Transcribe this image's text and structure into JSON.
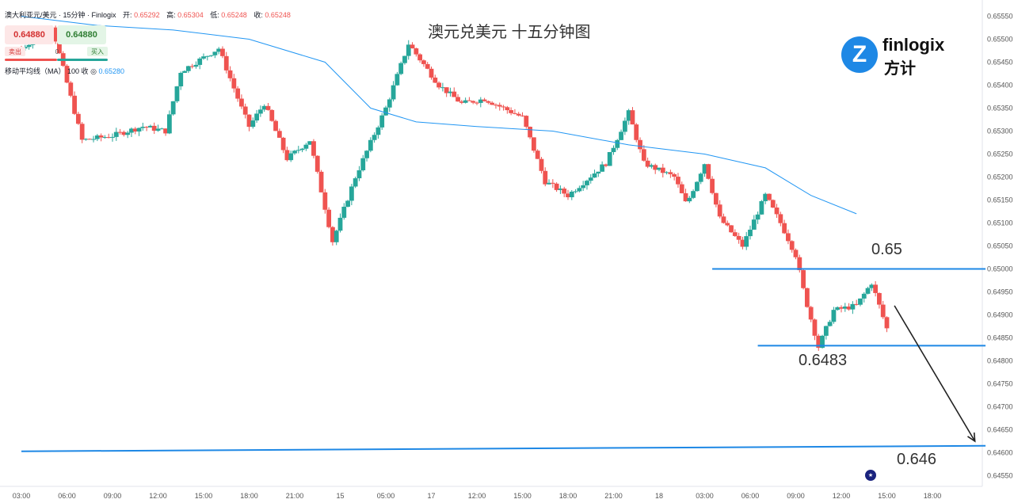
{
  "header": {
    "symbol": "澳大利亚元/美元 · 15分钟 · Finlogix",
    "open_label": "开:",
    "open": "0.65292",
    "high_label": "高:",
    "high": "0.65304",
    "low_label": "低:",
    "low": "0.65248",
    "close_label": "收:",
    "close": "0.65248"
  },
  "trade_panel": {
    "sell_price": "0.64880",
    "buy_price": "0.64880",
    "sell_label": "卖出",
    "buy_label": "买入",
    "spread": "0"
  },
  "indicator": {
    "name": "移动平均线（MA）",
    "params": "100 收",
    "value": "0.65280"
  },
  "title": "澳元兑美元 十五分钟图",
  "logo": {
    "brand": "finlogix",
    "cn": "方计",
    "mark": "Z"
  },
  "annotations": {
    "level_1": "0.65",
    "level_2": "0.6483",
    "level_3": "0.646"
  },
  "colors": {
    "up": "#26a69a",
    "down": "#ef5350",
    "ma": "#2196f3",
    "level": "#1e88e5",
    "arrow": "#222222"
  },
  "chart_data": {
    "type": "candlestick",
    "timeframe": "15分钟",
    "y_ticks": [
      "0.65550",
      "0.65500",
      "0.65450",
      "0.65400",
      "0.65350",
      "0.65300",
      "0.65250",
      "0.65200",
      "0.65150",
      "0.65100",
      "0.65050",
      "0.65000",
      "0.64950",
      "0.64900",
      "0.64850",
      "0.64800",
      "0.64750",
      "0.64700",
      "0.64650",
      "0.64600",
      "0.64550"
    ],
    "ylim": [
      0.6453,
      0.6557
    ],
    "x_ticks": [
      "03:00",
      "06:00",
      "09:00",
      "12:00",
      "15:00",
      "18:00",
      "21:00",
      "15",
      "05:00",
      "17",
      "12:00",
      "15:00",
      "18:00",
      "21:00",
      "18",
      "03:00",
      "06:00",
      "09:00",
      "12:00",
      "15:00",
      "18:00"
    ],
    "close_path": [
      {
        "t": 0,
        "p": 0.6548
      },
      {
        "t": 2,
        "p": 0.6553
      },
      {
        "t": 4,
        "p": 0.6528
      },
      {
        "t": 6,
        "p": 0.6529
      },
      {
        "t": 8,
        "p": 0.6531
      },
      {
        "t": 9.5,
        "p": 0.653
      },
      {
        "t": 10.5,
        "p": 0.6543
      },
      {
        "t": 13,
        "p": 0.6548
      },
      {
        "t": 14.5,
        "p": 0.6535
      },
      {
        "t": 15,
        "p": 0.6531
      },
      {
        "t": 16,
        "p": 0.6536
      },
      {
        "t": 17.5,
        "p": 0.6524
      },
      {
        "t": 19,
        "p": 0.6528
      },
      {
        "t": 20.5,
        "p": 0.6506
      },
      {
        "t": 22,
        "p": 0.652
      },
      {
        "t": 24,
        "p": 0.6535
      },
      {
        "t": 25.5,
        "p": 0.6549
      },
      {
        "t": 27.5,
        "p": 0.654
      },
      {
        "t": 29,
        "p": 0.6536
      },
      {
        "t": 30.5,
        "p": 0.6537
      },
      {
        "t": 33,
        "p": 0.6533
      },
      {
        "t": 34.5,
        "p": 0.6519
      },
      {
        "t": 36,
        "p": 0.6516
      },
      {
        "t": 38.5,
        "p": 0.6523
      },
      {
        "t": 40,
        "p": 0.6534
      },
      {
        "t": 41,
        "p": 0.6523
      },
      {
        "t": 43,
        "p": 0.652
      },
      {
        "t": 43.8,
        "p": 0.6514
      },
      {
        "t": 45,
        "p": 0.6523
      },
      {
        "t": 46,
        "p": 0.6511
      },
      {
        "t": 47.5,
        "p": 0.6505
      },
      {
        "t": 49,
        "p": 0.6516
      },
      {
        "t": 50,
        "p": 0.651
      },
      {
        "t": 51,
        "p": 0.6503
      },
      {
        "t": 51.6,
        "p": 0.6494
      },
      {
        "t": 52.5,
        "p": 0.6483
      },
      {
        "t": 53.5,
        "p": 0.6491
      },
      {
        "t": 55,
        "p": 0.6492
      },
      {
        "t": 56,
        "p": 0.6497
      },
      {
        "t": 57,
        "p": 0.6487
      }
    ],
    "ma": {
      "name": "移动平均线（MA）100",
      "points": [
        {
          "t": 0,
          "p": 0.6555
        },
        {
          "t": 5,
          "p": 0.6553
        },
        {
          "t": 10,
          "p": 0.6552
        },
        {
          "t": 15,
          "p": 0.655
        },
        {
          "t": 20,
          "p": 0.6545
        },
        {
          "t": 23,
          "p": 0.6535
        },
        {
          "t": 26,
          "p": 0.6532
        },
        {
          "t": 30,
          "p": 0.6531
        },
        {
          "t": 35,
          "p": 0.653
        },
        {
          "t": 40,
          "p": 0.6527
        },
        {
          "t": 45,
          "p": 0.6525
        },
        {
          "t": 49,
          "p": 0.6522
        },
        {
          "t": 52,
          "p": 0.6516
        },
        {
          "t": 55,
          "p": 0.6512
        }
      ]
    },
    "levels": [
      {
        "label": "0.65",
        "t1": 45.5,
        "t2": 63.5,
        "p1": 0.65,
        "p2": 0.65
      },
      {
        "label": "0.6483",
        "t1": 48.5,
        "t2": 63.5,
        "p1": 0.64833,
        "p2": 0.64833
      },
      {
        "label": "0.646",
        "t1": 0,
        "t2": 63.5,
        "p1": 0.64603,
        "p2": 0.64615
      }
    ],
    "arrow": {
      "from": {
        "t": 57.5,
        "p": 0.6492
      },
      "to": {
        "t": 62.8,
        "p": 0.64625
      }
    }
  }
}
